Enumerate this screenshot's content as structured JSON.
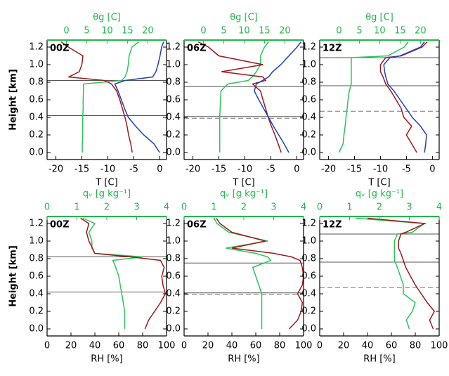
{
  "chart_data": [
    {
      "type": "line",
      "label": "00Z",
      "x_label": "T [C]",
      "x2_label": "θg [C]",
      "ylabel": "Height [km]",
      "y": [
        0.0,
        0.1,
        0.2,
        0.3,
        0.4,
        0.5,
        0.6,
        0.7,
        0.78,
        0.82,
        0.86,
        0.92,
        1.0,
        1.1,
        1.2,
        1.26
      ],
      "xlim": [
        -21.7,
        1.3
      ],
      "xticks": [
        -20,
        -15,
        -10,
        -5,
        0
      ],
      "x2lim": [
        -4.75,
        24.6
      ],
      "x2ticks": [
        0,
        5,
        10,
        15,
        20
      ],
      "ylim": [
        -0.08,
        1.28
      ],
      "yticks": [
        {
          "value": 0,
          "label": "0.0"
        },
        0.2,
        0.4,
        0.6,
        0.8,
        {
          "value": 1,
          "label": "1.0"
        },
        1.2
      ],
      "hlines": [
        0.82,
        0.42
      ],
      "series": [
        {
          "color": "#2cc45a",
          "axis": "x2",
          "values": [
            3.9,
            3.9,
            4.0,
            4.0,
            4.0,
            4.1,
            4.1,
            4.2,
            4.2,
            13.6,
            14.4,
            14.9,
            15.2,
            15.4,
            16.1,
            17.8
          ]
        },
        {
          "color": "#a01818",
          "values": [
            -5.3,
            -5.6,
            -6.0,
            -6.3,
            -6.7,
            -7.2,
            -7.7,
            -8.3,
            -9.3,
            -10.7,
            -17.5,
            -15.5,
            -15.0,
            -14.8,
            -17.6,
            -19.0
          ]
        },
        {
          "color": "#2040c0",
          "axis": "x2",
          "values": [
            22.9,
            21.5,
            19.0,
            17.0,
            15.2,
            14.3,
            13.5,
            12.7,
            11.9,
            14.4,
            21.2,
            22.0,
            22.5,
            23.0,
            23.4,
            23.9
          ]
        }
      ]
    },
    {
      "type": "line",
      "label": "06Z",
      "x_label": "T [C]",
      "x2_label": "θg [C]",
      "y": [
        0.0,
        0.1,
        0.2,
        0.3,
        0.4,
        0.5,
        0.6,
        0.7,
        0.78,
        0.82,
        0.86,
        0.92,
        1.0,
        1.1,
        1.2,
        1.26
      ],
      "xlim": [
        -21.7,
        1.3
      ],
      "xticks": [
        -20,
        -15,
        -10,
        -5,
        0
      ],
      "x2lim": [
        -4.75,
        24.6
      ],
      "x2ticks": [
        0,
        5,
        10,
        15,
        20
      ],
      "ylim": [
        -0.08,
        1.28
      ],
      "yticks": [
        {
          "value": 0,
          "label": "0.0"
        },
        0.2,
        0.4,
        0.6,
        0.8,
        {
          "value": 1,
          "label": "1.0"
        },
        1.2
      ],
      "hlines": [
        0.75,
        0.41
      ],
      "dashed_hlines": [
        0.39
      ],
      "series": [
        {
          "color": "#2cc45a",
          "axis": "x2",
          "values": [
            4.0,
            4.0,
            4.0,
            4.0,
            4.0,
            4.1,
            4.2,
            4.3,
            6.0,
            11.0,
            12.0,
            13.0,
            14.0,
            14.0,
            15.0,
            16.0
          ]
        },
        {
          "color": "#a01818",
          "values": [
            -3.0,
            -3.6,
            -4.2,
            -4.9,
            -5.5,
            -6.0,
            -6.5,
            -7.0,
            -8.5,
            -6.0,
            -6.5,
            -14.5,
            -6.5,
            -15.0,
            -17.0,
            -19.0
          ]
        },
        {
          "color": "#2040c0",
          "axis": "x2",
          "values": [
            21.0,
            19.8,
            18.5,
            17.2,
            16.0,
            14.8,
            13.6,
            12.5,
            13.0,
            14.5,
            16.0,
            17.0,
            19.0,
            21.0,
            23.0,
            24.0
          ]
        }
      ]
    },
    {
      "type": "line",
      "label": "12Z",
      "x_label": "T [C]",
      "x2_label": "θg [C]",
      "y": [
        0.0,
        0.1,
        0.2,
        0.3,
        0.4,
        0.5,
        0.6,
        0.7,
        0.78,
        0.86,
        0.92,
        1.0,
        1.08,
        1.1,
        1.2,
        1.26
      ],
      "xlim": [
        -21.7,
        1.3
      ],
      "xticks": [
        -20,
        -15,
        -10,
        -5,
        0
      ],
      "x2lim": [
        -4.75,
        24.6
      ],
      "x2ticks": [
        0,
        5,
        10,
        15,
        20
      ],
      "ylim": [
        -0.08,
        1.28
      ],
      "yticks": [
        {
          "value": 0,
          "label": "0.0"
        },
        0.2,
        0.4,
        0.6,
        0.8,
        {
          "value": 1,
          "label": "1.0"
        },
        1.2
      ],
      "hlines": [
        1.08,
        0.76
      ],
      "dashed_hlines": [
        0.47
      ],
      "series": [
        {
          "color": "#2cc45a",
          "axis": "x2",
          "values": [
            0.0,
            1.0,
            1.2,
            1.5,
            1.7,
            2.0,
            2.2,
            2.5,
            3.0,
            3.0,
            3.0,
            3.0,
            3.0,
            12.0,
            16.0,
            17.0
          ]
        },
        {
          "color": "#a01818",
          "values": [
            -3.0,
            -4.0,
            -5.0,
            -4.0,
            -5.5,
            -6.0,
            -7.0,
            -8.0,
            -9.0,
            -9.5,
            -10.0,
            -10.0,
            -9.0,
            -6.0,
            -2.0,
            -1.0
          ]
        },
        {
          "color": "#2040c0",
          "axis": "x2",
          "values": [
            21.0,
            21.3,
            21.5,
            20.0,
            18.0,
            16.5,
            15.0,
            13.5,
            12.0,
            11.5,
            11.2,
            11.0,
            12.5,
            15.0,
            20.0,
            21.0
          ]
        }
      ]
    },
    {
      "type": "line",
      "label": "00Z",
      "x_label": "RH [%]",
      "x2_label": "qᵥ [g kg⁻¹]",
      "ylabel": "Height [km]",
      "y": [
        0.0,
        0.1,
        0.2,
        0.3,
        0.4,
        0.5,
        0.6,
        0.7,
        0.78,
        0.82,
        0.86,
        0.92,
        1.0,
        1.1,
        1.2,
        1.26
      ],
      "xlim": [
        0,
        100
      ],
      "xticks": [
        0,
        20,
        40,
        60,
        80,
        100
      ],
      "x2lim": [
        0,
        4
      ],
      "x2ticks": [
        0,
        1,
        2,
        3,
        4
      ],
      "ylim": [
        -0.08,
        1.28
      ],
      "yticks": [
        {
          "value": 0,
          "label": "0.0"
        },
        0.2,
        0.4,
        0.6,
        0.8,
        {
          "value": 1,
          "label": "1.0"
        },
        1.2
      ],
      "hlines": [
        0.82,
        0.42
      ],
      "series": [
        {
          "color": "#2cc45a",
          "axis": "x2",
          "values": [
            2.6,
            2.6,
            2.6,
            2.55,
            2.5,
            2.45,
            2.4,
            2.3,
            2.2,
            3.2,
            1.6,
            1.5,
            1.5,
            1.4,
            1.6,
            1.2
          ]
        },
        {
          "color": "#a01818",
          "values": [
            82,
            85,
            90,
            95,
            99,
            97,
            96,
            98,
            95,
            70,
            40,
            38,
            35,
            33,
            35,
            28
          ]
        }
      ]
    },
    {
      "type": "line",
      "label": "06Z",
      "x_label": "RH [%]",
      "x2_label": "qᵥ [g kg⁻¹]",
      "y": [
        0.0,
        0.1,
        0.2,
        0.3,
        0.4,
        0.5,
        0.6,
        0.7,
        0.78,
        0.82,
        0.86,
        0.92,
        1.0,
        1.1,
        1.2,
        1.26
      ],
      "xlim": [
        0,
        100
      ],
      "xticks": [
        0,
        20,
        40,
        60,
        80,
        100
      ],
      "x2lim": [
        0,
        4
      ],
      "x2ticks": [
        0,
        1,
        2,
        3,
        4
      ],
      "ylim": [
        -0.08,
        1.28
      ],
      "yticks": [
        {
          "value": 0,
          "label": "0.0"
        },
        0.2,
        0.4,
        0.6,
        0.8,
        {
          "value": 1,
          "label": "1.0"
        },
        1.2
      ],
      "hlines": [
        0.75,
        0.41
      ],
      "dashed_hlines": [
        0.39
      ],
      "series": [
        {
          "color": "#2cc45a",
          "axis": "x2",
          "values": [
            2.6,
            2.6,
            2.6,
            2.6,
            2.6,
            2.5,
            2.4,
            2.3,
            2.9,
            2.8,
            2.4,
            1.4,
            2.8,
            1.5,
            1.1,
            1.0
          ]
        },
        {
          "color": "#a01818",
          "values": [
            88,
            95,
            98,
            99,
            95,
            99,
            100,
            99,
            97,
            90,
            75,
            40,
            68,
            40,
            30,
            27
          ]
        }
      ]
    },
    {
      "type": "line",
      "label": "12Z",
      "x_label": "RH [%]",
      "x2_label": "qᵥ [g kg⁻¹]",
      "y": [
        0.0,
        0.1,
        0.2,
        0.3,
        0.4,
        0.5,
        0.6,
        0.7,
        0.78,
        0.86,
        0.92,
        1.0,
        1.08,
        1.1,
        1.2,
        1.26
      ],
      "xlim": [
        0,
        100
      ],
      "xticks": [
        0,
        20,
        40,
        60,
        80,
        100
      ],
      "x2lim": [
        0,
        4
      ],
      "x2ticks": [
        0,
        1,
        2,
        3,
        4
      ],
      "ylim": [
        -0.08,
        1.28
      ],
      "yticks": [
        {
          "value": 0,
          "label": "0.0"
        },
        0.2,
        0.4,
        0.6,
        0.8,
        {
          "value": 1,
          "label": "1.0"
        },
        1.2
      ],
      "hlines": [
        1.08,
        0.76
      ],
      "dashed_hlines": [
        0.47
      ],
      "series": [
        {
          "color": "#2cc45a",
          "axis": "x2",
          "values": [
            3.0,
            2.9,
            3.1,
            3.2,
            2.8,
            2.8,
            2.7,
            2.6,
            2.5,
            2.5,
            2.5,
            2.5,
            2.6,
            3.1,
            3.5,
            1.2
          ]
        },
        {
          "color": "#a01818",
          "values": [
            95,
            92,
            96,
            90,
            85,
            80,
            76,
            72,
            70,
            68,
            66,
            66,
            68,
            72,
            88,
            40
          ]
        }
      ]
    }
  ]
}
